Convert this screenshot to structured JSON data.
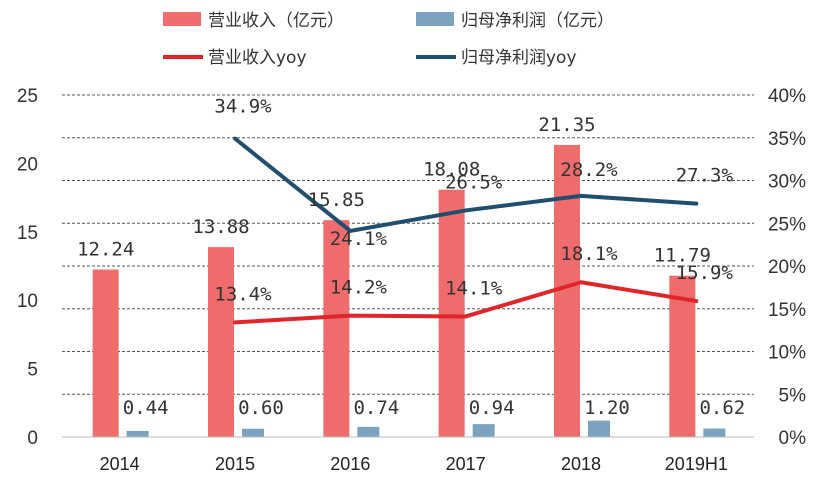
{
  "chart_data": {
    "type": "bar",
    "title": "",
    "xlabel": "",
    "ylabel": "",
    "categories": [
      "2014",
      "2015",
      "2016",
      "2017",
      "2018",
      "2019H1"
    ],
    "y_left_lim": [
      0,
      25
    ],
    "y_left_ticks": [
      "0",
      "5",
      "10",
      "15",
      "20",
      "25"
    ],
    "y_right_lim": [
      0,
      40
    ],
    "y_right_ticks": [
      "0%",
      "5%",
      "10%",
      "15%",
      "20%",
      "25%",
      "30%",
      "35%",
      "40%"
    ],
    "grid": "horizontal dashed",
    "legend_placement": "top",
    "series": [
      {
        "name": "营业收入（亿元）",
        "kind": "bar",
        "axis": "left",
        "color": "#f06b6b",
        "values": [
          12.24,
          13.88,
          15.85,
          18.08,
          21.35,
          11.79
        ],
        "labels": [
          "12.24",
          "13.88",
          "15.85",
          "18.08",
          "21.35",
          "11.79"
        ]
      },
      {
        "name": "归母净利润（亿元）",
        "kind": "bar",
        "axis": "left",
        "color": "#7ba3bf",
        "values": [
          0.44,
          0.6,
          0.74,
          0.94,
          1.2,
          0.62
        ],
        "labels": [
          "0.44",
          "0.60",
          "0.74",
          "0.94",
          "1.20",
          "0.62"
        ]
      },
      {
        "name": "营业收入yoy",
        "kind": "line",
        "axis": "right",
        "color": "#e0262b",
        "values": [
          null,
          13.4,
          14.2,
          14.1,
          18.1,
          15.9
        ],
        "labels": [
          "",
          "13.4%",
          "14.2%",
          "14.1%",
          "18.1%",
          "15.9%"
        ]
      },
      {
        "name": "归母净利润yoy",
        "kind": "line",
        "axis": "right",
        "color": "#1f4e6e",
        "values": [
          null,
          34.9,
          24.1,
          26.5,
          28.2,
          27.3
        ],
        "labels": [
          "",
          "34.9%",
          "24.1%",
          "26.5%",
          "28.2%",
          "27.3%"
        ]
      }
    ]
  }
}
